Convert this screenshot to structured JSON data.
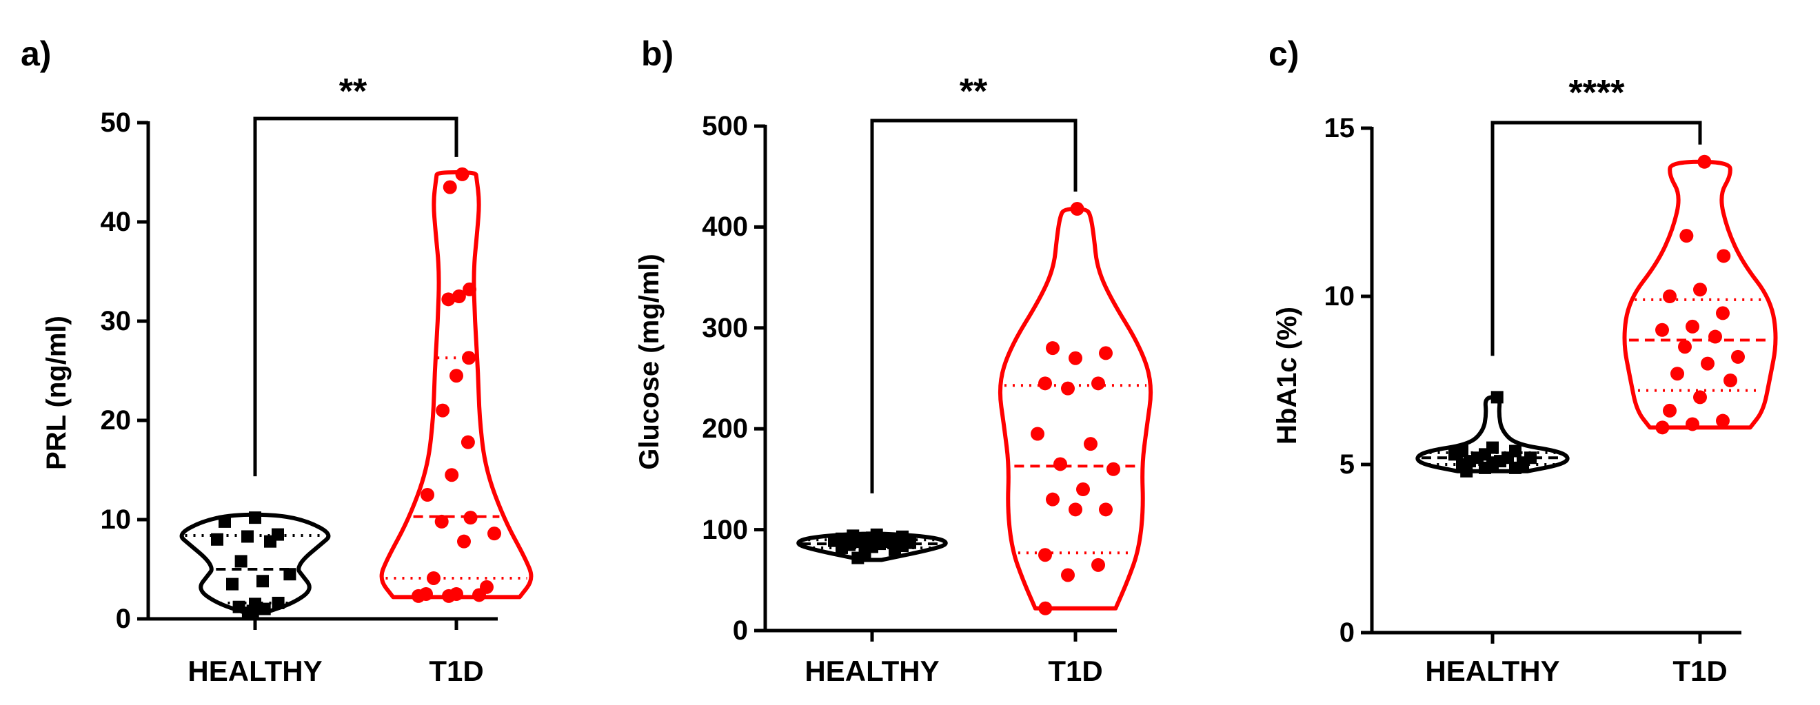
{
  "colors": {
    "healthy": "#000000",
    "t1d": "#ff0000",
    "axis": "#000000",
    "background": "#ffffff"
  },
  "chart_data": [
    {
      "type": "violin",
      "panel_label": "a)",
      "title": "",
      "ylabel": "PRL (ng/ml)",
      "xlabel": "",
      "ylim": [
        0,
        50
      ],
      "yticks": [
        0,
        10,
        20,
        30,
        40,
        50
      ],
      "categories": [
        "HEALTHY",
        "T1D"
      ],
      "significance": "**",
      "series": [
        {
          "name": "HEALTHY",
          "color": "#000000",
          "marker": "square",
          "values": [
            0.6,
            0.8,
            1.0,
            1.2,
            1.5,
            1.6,
            3.5,
            3.8,
            4.5,
            5.8,
            7.8,
            8.0,
            8.3,
            8.5,
            9.8,
            10.2
          ],
          "median": 5.0,
          "q1": 1.6,
          "q3": 8.4,
          "violin": [
            [
              0.6,
              0.12
            ],
            [
              1.6,
              0.5
            ],
            [
              3.0,
              0.75
            ],
            [
              4.5,
              0.6
            ],
            [
              5.0,
              0.55
            ],
            [
              6.0,
              0.62
            ],
            [
              7.5,
              0.85
            ],
            [
              8.5,
              1.0
            ],
            [
              9.8,
              0.7
            ],
            [
              10.5,
              0.3
            ]
          ]
        },
        {
          "name": "T1D",
          "color": "#ff0000",
          "marker": "circle",
          "values": [
            2.3,
            2.3,
            2.4,
            2.5,
            2.5,
            3.2,
            4.1,
            7.8,
            8.6,
            9.8,
            10.2,
            12.5,
            14.5,
            17.8,
            21.0,
            24.5,
            26.3,
            32.2,
            32.5,
            33.2,
            43.5,
            44.8
          ],
          "median": 10.3,
          "q1": 4.1,
          "q3": 26.3,
          "violin": [
            [
              2.2,
              0.82
            ],
            [
              4.0,
              1.0
            ],
            [
              6.0,
              0.9
            ],
            [
              10.0,
              0.62
            ],
            [
              15.0,
              0.38
            ],
            [
              20.0,
              0.3
            ],
            [
              25.0,
              0.28
            ],
            [
              30.0,
              0.24
            ],
            [
              35.0,
              0.22
            ],
            [
              39.0,
              0.27
            ],
            [
              42.0,
              0.3
            ],
            [
              44.5,
              0.26
            ],
            [
              45.0,
              0.25
            ]
          ]
        }
      ]
    },
    {
      "type": "violin",
      "panel_label": "b)",
      "title": "",
      "ylabel": "Glucose (mg/ml)",
      "xlabel": "",
      "ylim": [
        0,
        500
      ],
      "yticks": [
        0,
        100,
        200,
        300,
        400,
        500
      ],
      "categories": [
        "HEALTHY",
        "T1D"
      ],
      "significance": "**",
      "series": [
        {
          "name": "HEALTHY",
          "color": "#000000",
          "marker": "square",
          "values": [
            72,
            78,
            80,
            82,
            83,
            84,
            85,
            86,
            87,
            88,
            88,
            89,
            90,
            90,
            91,
            92,
            93,
            94,
            95
          ],
          "median": 86,
          "q1": 82,
          "q3": 90,
          "violin": [
            [
              70,
              0.12
            ],
            [
              80,
              0.75
            ],
            [
              86,
              1.0
            ],
            [
              92,
              0.85
            ],
            [
              96,
              0.25
            ]
          ]
        },
        {
          "name": "T1D",
          "color": "#ff0000",
          "marker": "circle",
          "values": [
            22,
            55,
            65,
            75,
            120,
            120,
            130,
            140,
            160,
            165,
            185,
            195,
            240,
            245,
            245,
            270,
            275,
            280,
            418
          ],
          "median": 163,
          "q1": 77,
          "q3": 243,
          "violin": [
            [
              22,
              0.52
            ],
            [
              50,
              0.68
            ],
            [
              80,
              0.82
            ],
            [
              120,
              0.88
            ],
            [
              163,
              0.86
            ],
            [
              200,
              0.92
            ],
            [
              243,
              1.0
            ],
            [
              280,
              0.85
            ],
            [
              330,
              0.45
            ],
            [
              360,
              0.28
            ],
            [
              390,
              0.24
            ],
            [
              410,
              0.2
            ],
            [
              418,
              0.15
            ]
          ]
        }
      ]
    },
    {
      "type": "violin",
      "panel_label": "c)",
      "title": "",
      "ylabel": "HbA1c (%)",
      "xlabel": "",
      "ylim": [
        0,
        15
      ],
      "yticks": [
        0,
        5,
        10,
        15
      ],
      "categories": [
        "HEALTHY",
        "T1D"
      ],
      "significance": "****",
      "series": [
        {
          "name": "HEALTHY",
          "color": "#000000",
          "marker": "square",
          "values": [
            4.8,
            4.9,
            4.9,
            5.0,
            5.0,
            5.0,
            5.1,
            5.1,
            5.2,
            5.2,
            5.2,
            5.3,
            5.3,
            5.4,
            5.4,
            5.5,
            7.0
          ],
          "median": 5.2,
          "q1": 5.0,
          "q3": 5.35,
          "violin": [
            [
              4.8,
              0.45
            ],
            [
              5.0,
              0.9
            ],
            [
              5.2,
              1.0
            ],
            [
              5.4,
              0.85
            ],
            [
              5.6,
              0.3
            ],
            [
              6.0,
              0.12
            ],
            [
              6.5,
              0.08
            ],
            [
              7.0,
              0.1
            ]
          ]
        },
        {
          "name": "T1D",
          "color": "#ff0000",
          "marker": "circle",
          "values": [
            6.1,
            6.2,
            6.3,
            6.6,
            7.0,
            7.5,
            7.7,
            8.0,
            8.2,
            8.5,
            8.8,
            9.0,
            9.1,
            9.5,
            10.0,
            10.2,
            11.2,
            11.8,
            14.0
          ],
          "median": 8.7,
          "q1": 7.2,
          "q3": 9.9,
          "violin": [
            [
              6.1,
              0.65
            ],
            [
              6.6,
              0.82
            ],
            [
              7.5,
              0.9
            ],
            [
              8.7,
              1.0
            ],
            [
              9.9,
              0.92
            ],
            [
              11.0,
              0.55
            ],
            [
              12.0,
              0.35
            ],
            [
              13.0,
              0.25
            ],
            [
              13.6,
              0.4
            ],
            [
              14.0,
              0.38
            ]
          ]
        }
      ]
    }
  ]
}
